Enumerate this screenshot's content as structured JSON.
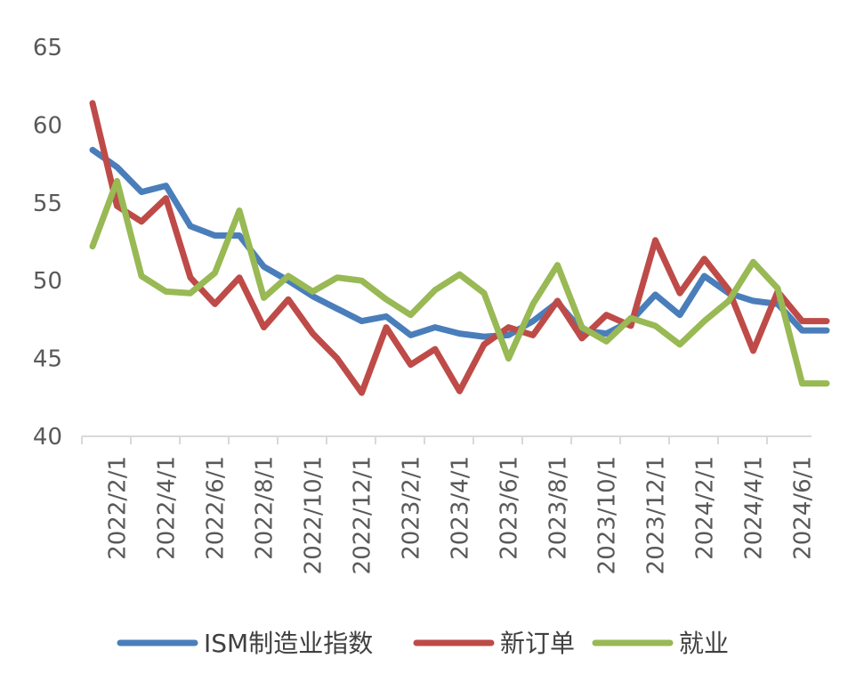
{
  "chart_data": {
    "type": "line",
    "title": "",
    "xlabel": "",
    "ylabel": "",
    "ylim": [
      40,
      65
    ],
    "yticks": [
      40,
      45,
      50,
      55,
      60,
      65
    ],
    "grid": false,
    "legend_position": "bottom",
    "x": [
      "2022/1",
      "2022/2",
      "2022/3",
      "2022/4",
      "2022/5",
      "2022/6",
      "2022/7",
      "2022/8",
      "2022/9",
      "2022/10",
      "2022/11",
      "2022/12",
      "2023/1",
      "2023/2",
      "2023/3",
      "2023/4",
      "2023/5",
      "2023/6",
      "2023/7",
      "2023/8",
      "2023/9",
      "2023/10",
      "2023/11",
      "2023/12",
      "2024/1",
      "2024/2",
      "2024/3",
      "2024/4",
      "2024/5",
      "2024/6",
      "2024/7"
    ],
    "tick_labels": [
      "2022/2/1",
      "2022/4/1",
      "2022/6/1",
      "2022/8/1",
      "2022/10/1",
      "2022/12/1",
      "2023/2/1",
      "2023/4/1",
      "2023/6/1",
      "2023/8/1",
      "2023/10/1",
      "2023/12/1",
      "2024/2/1",
      "2024/4/1",
      "2024/6/1"
    ],
    "series": [
      {
        "name": "ISM制造业指数",
        "color": "#4a7ebb",
        "values": [
          58.4,
          57.3,
          55.7,
          56.1,
          53.5,
          52.9,
          52.9,
          50.9,
          50.0,
          49.0,
          48.2,
          47.4,
          47.7,
          46.5,
          47.0,
          46.6,
          46.4,
          46.5,
          47.4,
          48.6,
          46.8,
          46.6,
          47.4,
          49.1,
          47.8,
          50.3,
          49.2,
          48.7,
          48.5,
          46.8,
          46.8
        ]
      },
      {
        "name": "新订单",
        "color": "#be4b48",
        "values": [
          61.4,
          54.8,
          53.8,
          55.3,
          50.2,
          48.5,
          50.2,
          47.0,
          48.8,
          46.6,
          45.0,
          42.8,
          47.0,
          44.6,
          45.6,
          42.9,
          45.9,
          47.0,
          46.5,
          48.7,
          46.3,
          47.8,
          47.1,
          52.6,
          49.2,
          51.4,
          49.4,
          45.5,
          49.3,
          47.4,
          47.4
        ]
      },
      {
        "name": "就业",
        "color": "#98b954",
        "values": [
          52.2,
          56.4,
          50.3,
          49.3,
          49.2,
          50.5,
          54.5,
          48.9,
          50.3,
          49.3,
          50.2,
          50.0,
          48.8,
          47.8,
          49.4,
          50.4,
          49.2,
          45.0,
          48.5,
          51.0,
          47.0,
          46.1,
          47.6,
          47.1,
          45.9,
          47.4,
          48.7,
          51.2,
          49.5,
          43.4,
          43.4
        ]
      }
    ]
  }
}
